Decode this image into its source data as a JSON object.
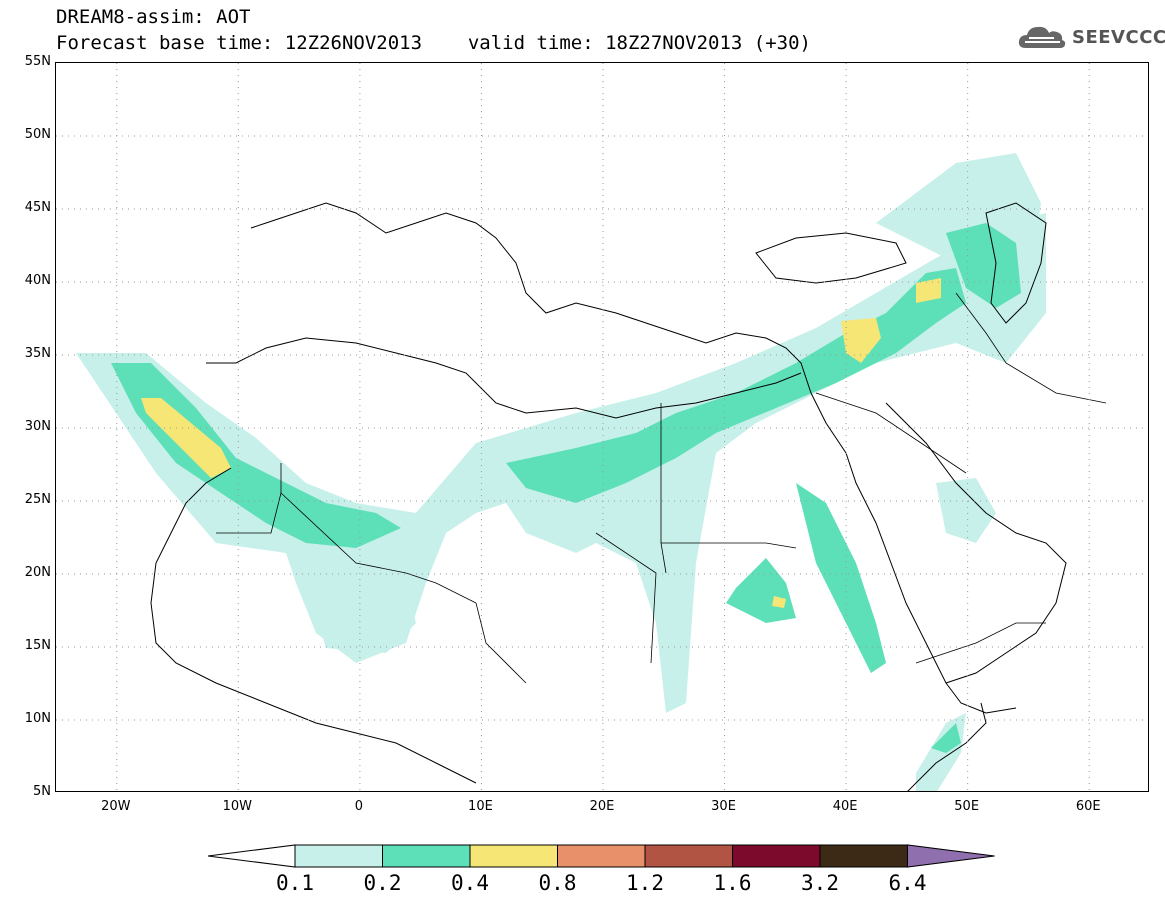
{
  "title": {
    "line1": "DREAM8-assim: AOT",
    "line2_base": "Forecast base time: 12Z26NOV2013",
    "line2_valid": "valid time: 18Z27NOV2013 (+30)"
  },
  "logo": {
    "text": "SEEVCCC",
    "icon": "cloud-icon"
  },
  "map": {
    "lon_range": [
      -25,
      65
    ],
    "lat_range": [
      5,
      55
    ],
    "lat_labels": [
      "55N",
      "50N",
      "45N",
      "40N",
      "35N",
      "30N",
      "25N",
      "20N",
      "15N",
      "10N",
      "5N"
    ],
    "lat_values": [
      55,
      50,
      45,
      40,
      35,
      30,
      25,
      20,
      15,
      10,
      5
    ],
    "lon_labels": [
      "20W",
      "10W",
      "0",
      "10E",
      "20E",
      "30E",
      "40E",
      "50E",
      "60E"
    ],
    "lon_values": [
      -20,
      -10,
      0,
      10,
      20,
      30,
      40,
      50,
      60
    ],
    "grid": "dotted"
  },
  "legend": {
    "title": "AOT",
    "levels": [
      "0.1",
      "0.2",
      "0.4",
      "0.8",
      "1.2",
      "1.6",
      "3.2",
      "6.4"
    ],
    "colors": [
      "#ffffff",
      "#c7f0ea",
      "#5ddfb8",
      "#f5e675",
      "#e8906a",
      "#b15444",
      "#7b0a2c",
      "#3c2a17",
      "#8f6fae"
    ]
  },
  "field_colors": {
    "low": "#c7f0ea",
    "mid": "#5ddfb8",
    "high": "#f5e675"
  }
}
